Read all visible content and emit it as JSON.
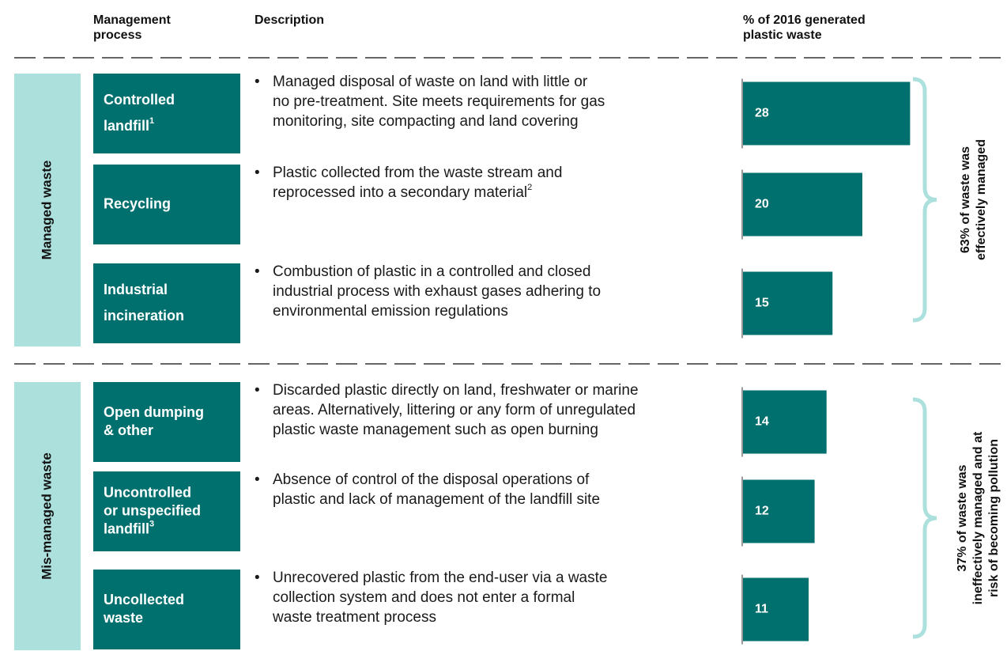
{
  "header": {
    "process": [
      "Management",
      "process"
    ],
    "description": "Description",
    "share": [
      "% of 2016 generated",
      "plastic waste"
    ]
  },
  "groups": [
    {
      "name": "Managed waste",
      "summary": [
        "63% of waste was",
        "effectively managed"
      ],
      "rows": [
        {
          "process": [
            "Controlled",
            "landfill"
          ],
          "note": "1",
          "description": [
            "Managed disposal of waste on land with little or",
            "no pre-treatment. Site meets requirements for gas",
            "monitoring, site compacting and land covering"
          ],
          "value": 28
        },
        {
          "process": [
            "Recycling"
          ],
          "description": [
            "Plastic collected from the waste stream and",
            "reprocessed into a secondary material"
          ],
          "description_note": "2",
          "value": 20
        },
        {
          "process": [
            "Industrial",
            "incineration"
          ],
          "description": [
            "Combustion of plastic in a controlled and closed",
            "industrial process with exhaust gases adhering to",
            "environmental emission regulations"
          ],
          "value": 15
        }
      ]
    },
    {
      "name": "Mis-managed waste",
      "summary": [
        "37% of waste was",
        "ineffectively managed and at",
        "risk of becoming pollution"
      ],
      "rows": [
        {
          "process": [
            "Open dumping",
            "& other"
          ],
          "description": [
            "Discarded plastic directly on land, freshwater or marine",
            "areas. Alternatively, littering or any form of unregulated",
            "plastic waste management such as open burning"
          ],
          "value": 14
        },
        {
          "process": [
            "Uncontrolled",
            "or unspecified",
            "landfill"
          ],
          "note": "3",
          "description": [
            "Absence of control of the disposal operations of",
            "plastic and lack of management of the landfill site"
          ],
          "value": 12
        },
        {
          "process": [
            "Uncollected",
            "waste"
          ],
          "description": [
            "Unrecovered plastic from the end-user via a waste",
            "collection system and does not enter a formal",
            "waste treatment process"
          ],
          "value": 11
        }
      ]
    }
  ]
}
